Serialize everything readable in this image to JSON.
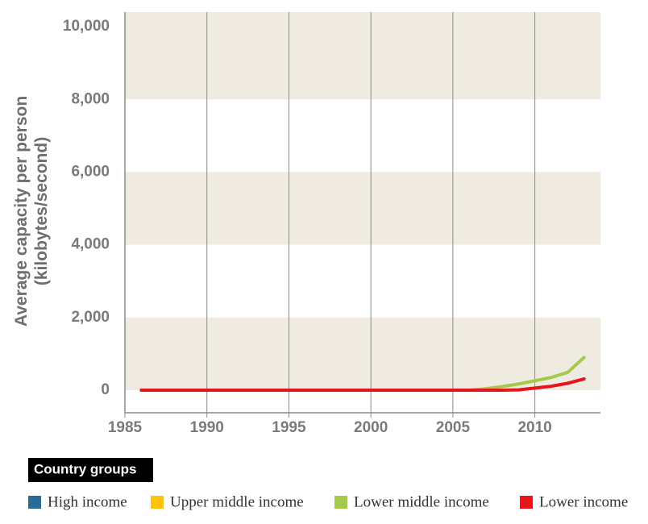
{
  "chart_data": {
    "type": "line",
    "ylabel": [
      "Average capacity per person",
      "(kilobytes/second)"
    ],
    "x": [
      1986,
      1990,
      1995,
      2000,
      2005,
      2006,
      2007,
      2008,
      2009,
      2010,
      2011,
      2012,
      2013
    ],
    "series": [
      {
        "name": "High income",
        "color": "#2b6a99",
        "values": [
          null,
          null,
          null,
          null,
          null,
          null,
          null,
          null,
          null,
          null,
          null,
          null,
          null
        ]
      },
      {
        "name": "Upper middle income",
        "color": "#ffc20e",
        "values": [
          null,
          null,
          null,
          null,
          null,
          null,
          null,
          null,
          null,
          null,
          null,
          null,
          null
        ]
      },
      {
        "name": "Lower middle income",
        "color": "#a5c94a",
        "values": [
          0,
          0,
          0,
          0,
          0,
          0,
          40,
          100,
          170,
          260,
          350,
          490,
          900
        ]
      },
      {
        "name": "Lower income",
        "color": "#e8141a",
        "values": [
          0,
          0,
          0,
          0,
          0,
          0,
          0,
          0,
          10,
          60,
          110,
          190,
          310
        ]
      }
    ],
    "legend_title": "Country groups",
    "xlim": [
      1985,
      2014
    ],
    "xticks": [
      1985,
      1990,
      1995,
      2000,
      2005,
      2010
    ],
    "ylim": [
      -620,
      10400
    ],
    "yticks": [
      0,
      {
        "value": 2000,
        "label": "2,000"
      },
      {
        "value": 4000,
        "label": "4,000"
      },
      {
        "value": 6000,
        "label": "6,000"
      },
      {
        "value": 8000,
        "label": "8,000"
      },
      {
        "value": 10000,
        "label": "10,000"
      }
    ],
    "band_color": "#efebe1",
    "grid": true
  }
}
